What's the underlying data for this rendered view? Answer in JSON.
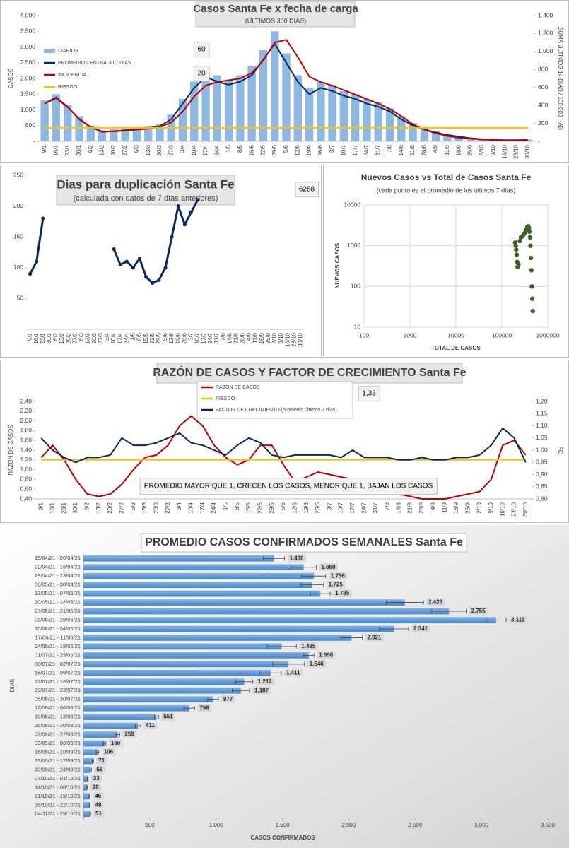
{
  "chart_data": [
    {
      "type": "combo",
      "title": "Casos Santa Fe x fecha de carga",
      "subtitle": "(ÚLTIMOS 300 DÍAS)",
      "ylabel": "CASOS",
      "y2label": "SUMA ÚLTIMOS 14 DÍAS / 100.000 HAB",
      "annotations": [
        "60",
        "20"
      ],
      "legend": "upper left",
      "grid": false,
      "categories": [
        "9/1",
        "16/1",
        "23/1",
        "30/1",
        "6/2",
        "13/2",
        "20/2",
        "27/2",
        "6/3",
        "13/3",
        "20/3",
        "27/3",
        "3/4",
        "10/4",
        "17/4",
        "24/4",
        "1/5",
        "8/5",
        "15/5",
        "22/5",
        "29/5",
        "5/6",
        "12/6",
        "19/6",
        "26/6",
        "3/7",
        "10/7",
        "17/7",
        "24/7",
        "31/7",
        "7/8",
        "14/8",
        "21/8",
        "28/8",
        "4/9",
        "11/9",
        "18/9",
        "25/9",
        "2/10",
        "9/10",
        "16/10",
        "23/10",
        "30/10"
      ],
      "series": [
        {
          "name": "DIARIOS",
          "type": "bar",
          "color": "#8db8e2",
          "values": [
            1300,
            1500,
            1150,
            800,
            500,
            350,
            380,
            400,
            420,
            470,
            550,
            850,
            1350,
            1900,
            2250,
            2100,
            1950,
            2100,
            2400,
            2900,
            3500,
            2800,
            2100,
            1700,
            1900,
            1800,
            1600,
            1500,
            1350,
            1250,
            1050,
            800,
            580,
            430,
            320,
            240,
            170,
            120,
            80,
            60,
            45,
            45,
            55
          ]
        },
        {
          "name": "PROMEDIO CENTRADO 7 DÍAS",
          "type": "line",
          "color": "#0d2a5c",
          "values": [
            1200,
            1400,
            1100,
            700,
            450,
            300,
            320,
            350,
            380,
            420,
            480,
            700,
            1200,
            1700,
            2050,
            1900,
            1800,
            1900,
            2100,
            2600,
            3100,
            2500,
            1900,
            1500,
            1700,
            1600,
            1450,
            1350,
            1200,
            1100,
            950,
            700,
            500,
            380,
            280,
            200,
            150,
            100,
            70,
            50,
            40,
            40,
            50
          ]
        },
        {
          "name": "INCIDENCIA",
          "type": "line",
          "color": "#c00000",
          "axis": "y2",
          "values": [
            420,
            480,
            380,
            250,
            160,
            110,
            110,
            120,
            130,
            140,
            160,
            210,
            330,
            500,
            620,
            660,
            680,
            700,
            760,
            900,
            1100,
            1130,
            940,
            720,
            660,
            620,
            570,
            520,
            470,
            420,
            360,
            280,
            190,
            130,
            90,
            60,
            40,
            30,
            20,
            15,
            12,
            12,
            12
          ]
        },
        {
          "name": "RIESGO",
          "type": "line",
          "color": "#ffc000",
          "axis": "y2",
          "values": [
            150,
            150,
            150,
            150,
            150,
            150,
            150,
            150,
            150,
            150,
            150,
            150,
            150,
            150,
            150,
            150,
            150,
            150,
            150,
            150,
            150,
            150,
            150,
            150,
            150,
            150,
            150,
            150,
            150,
            150,
            150,
            150,
            150,
            150,
            150,
            150,
            150,
            150,
            150,
            150,
            150,
            150,
            150
          ]
        }
      ],
      "ylim": [
        0,
        4000
      ],
      "yticks": [
        {
          "value": 0,
          "label": "-"
        },
        500,
        {
          "value": 1000,
          "label": "1.000"
        },
        {
          "value": 1500,
          "label": "1.500"
        },
        {
          "value": 2000,
          "label": "2.000"
        },
        {
          "value": 2500,
          "label": "2.500"
        },
        {
          "value": 3000,
          "label": "3.000"
        },
        {
          "value": 3500,
          "label": "3.500"
        },
        {
          "value": 4000,
          "label": "4.000"
        }
      ],
      "y2lim": [
        0,
        1400
      ],
      "y2ticks": [
        {
          "value": 0,
          "label": "-"
        },
        200,
        400,
        600,
        800,
        {
          "value": 1000,
          "label": "1.000"
        },
        {
          "value": 1200,
          "label": "1.200"
        },
        {
          "value": 1400,
          "label": "1.400"
        }
      ]
    },
    {
      "type": "line",
      "title": "Dias para duplicación Santa Fe",
      "subtitle": "(calculada con datos de 7 días anteriores)",
      "annotations": [
        "6288"
      ],
      "grid": false,
      "color": "#0d2a5c",
      "categories": [
        "9/1",
        "16/1",
        "23/1",
        "30/1",
        "6/2",
        "13/2",
        "20/2",
        "27/2",
        "6/3",
        "13/3",
        "20/3",
        "27/3",
        "3/4",
        "10/4",
        "17/4",
        "24/4",
        "1/5",
        "8/5",
        "15/5",
        "22/5",
        "29/5",
        "5/6",
        "12/6",
        "19/6",
        "26/6",
        "3/7",
        "10/7",
        "17/7",
        "24/7",
        "31/7",
        "7/8",
        "14/8",
        "21/8",
        "28/8",
        "4/9",
        "11/9",
        "18/9",
        "25/9",
        "2/10",
        "9/10",
        "16/10",
        "23/10",
        "30/10"
      ],
      "values": [
        90,
        110,
        180,
        null,
        null,
        null,
        null,
        null,
        null,
        null,
        null,
        null,
        null,
        130,
        105,
        110,
        100,
        115,
        85,
        75,
        80,
        100,
        150,
        200,
        170,
        190,
        210,
        null,
        null,
        null,
        null,
        null,
        null,
        null,
        null,
        null,
        null,
        null,
        null,
        null,
        null,
        null,
        null
      ],
      "ylim": [
        0,
        250
      ],
      "yticks": [
        50,
        100,
        150,
        200,
        250
      ]
    },
    {
      "type": "scatter",
      "title": "Nuevos Casos vs Total de Casos Santa Fe",
      "subtitle": "(cada punto es el promedio de los últimos 7 días)",
      "ylabel": "NUEVOS CASOS",
      "xlabel": "TOTAL DE CASOS",
      "color": "#3b6325",
      "grid": true,
      "xlog": true,
      "ylog": true,
      "x": [
        195000,
        200000,
        205000,
        210000,
        215000,
        220000,
        230000,
        245000,
        260000,
        280000,
        300000,
        320000,
        340000,
        360000,
        375000,
        390000,
        400000,
        410000,
        420000,
        430000,
        440000,
        450000,
        460000,
        470000
      ],
      "values": [
        1200,
        1000,
        800,
        600,
        400,
        300,
        350,
        1300,
        1600,
        1700,
        1900,
        2100,
        2500,
        2900,
        3000,
        2700,
        2200,
        1600,
        1000,
        500,
        250,
        100,
        50,
        25
      ],
      "xlim": [
        100,
        1000000
      ],
      "xticks": [
        100,
        1000,
        10000,
        100000,
        1000000
      ],
      "ylim": [
        10,
        10000
      ],
      "yticks": [
        10,
        100,
        1000,
        10000
      ]
    },
    {
      "type": "line",
      "title": "RAZÓN DE CASOS Y FACTOR DE CRECIMIENTO Santa Fe",
      "ylabel": "RAZÓN DE CASOS",
      "y2label": "FC",
      "annotations": [
        "1,33",
        "PROMEDIO MAYOR QUE 1, CRECEN LOS CASOS, MENOR QUE 1, BAJAN LOS CASOS"
      ],
      "legend": "upper center",
      "grid": false,
      "categories": [
        "9/1",
        "16/1",
        "23/1",
        "30/1",
        "6/2",
        "13/2",
        "20/2",
        "27/2",
        "6/3",
        "13/3",
        "20/3",
        "27/3",
        "3/4",
        "10/4",
        "17/4",
        "24/4",
        "1/5",
        "8/5",
        "15/5",
        "22/5",
        "29/5",
        "5/6",
        "12/6",
        "19/6",
        "26/6",
        "3/7",
        "10/7",
        "17/7",
        "24/7",
        "31/7",
        "7/8",
        "14/8",
        "21/8",
        "28/8",
        "4/9",
        "11/9",
        "18/9",
        "25/9",
        "2/10",
        "9/10",
        "16/10",
        "23/10",
        "30/10"
      ],
      "series": [
        {
          "name": "RAZÓN DE CASOS",
          "color": "#c00000",
          "values": [
            1.25,
            1.5,
            1.2,
            0.8,
            0.5,
            0.45,
            0.5,
            0.7,
            1.0,
            1.25,
            1.3,
            1.5,
            1.9,
            2.1,
            1.9,
            1.5,
            1.25,
            1.1,
            1.2,
            1.5,
            1.5,
            1.1,
            0.75,
            0.85,
            0.95,
            0.9,
            0.85,
            0.8,
            0.8,
            0.75,
            0.6,
            0.5,
            0.45,
            0.4,
            0.4,
            0.4,
            0.45,
            0.5,
            0.55,
            0.8,
            1.5,
            1.6,
            1.3
          ]
        },
        {
          "name": "RIESGO",
          "color": "#ffc000",
          "values": [
            1.2,
            1.2,
            1.2,
            1.2,
            1.2,
            1.2,
            1.2,
            1.2,
            1.2,
            1.2,
            1.2,
            1.2,
            1.2,
            1.2,
            1.2,
            1.2,
            1.2,
            1.2,
            1.2,
            1.2,
            1.2,
            1.2,
            1.2,
            1.2,
            1.2,
            1.2,
            1.2,
            1.2,
            1.2,
            1.2,
            1.2,
            1.2,
            1.2,
            1.2,
            1.2,
            1.2,
            1.2,
            1.2,
            1.2,
            1.2,
            1.2,
            1.2,
            1.2
          ]
        },
        {
          "name": "FACTOR DE CRECIMIENTO (promedio últimos 7 días)",
          "color": "#0d2a5c",
          "axis": "y2",
          "values": [
            1.05,
            1.0,
            0.97,
            0.95,
            0.97,
            0.97,
            0.98,
            1.05,
            1.02,
            1.02,
            1.03,
            1.05,
            1.07,
            1.03,
            1.02,
            1.0,
            0.98,
            1.02,
            1.05,
            1.03,
            0.98,
            0.97,
            0.98,
            0.98,
            0.98,
            0.98,
            0.97,
            1.0,
            0.97,
            0.97,
            0.97,
            0.96,
            0.96,
            0.97,
            0.96,
            0.96,
            0.97,
            0.97,
            0.98,
            1.02,
            1.09,
            1.05,
            0.95
          ]
        }
      ],
      "ylim": [
        0.4,
        2.4
      ],
      "yticks": [
        {
          "value": 0.4,
          "label": "0,40"
        },
        {
          "value": 0.6,
          "label": "0,60"
        },
        {
          "value": 0.8,
          "label": "0,80"
        },
        {
          "value": 1.0,
          "label": "1,00"
        },
        {
          "value": 1.2,
          "label": "1,20"
        },
        {
          "value": 1.4,
          "label": "1,40"
        },
        {
          "value": 1.6,
          "label": "1,60"
        },
        {
          "value": 1.8,
          "label": "1,80"
        },
        {
          "value": 2.0,
          "label": "2,00"
        },
        {
          "value": 2.2,
          "label": "2,20"
        },
        {
          "value": 2.4,
          "label": "2,40"
        }
      ],
      "y2lim": [
        0.8,
        1.2
      ],
      "y2ticks": [
        {
          "value": 0.8,
          "label": "0,80"
        },
        {
          "value": 0.85,
          "label": "0,85"
        },
        {
          "value": 0.9,
          "label": "0,90"
        },
        {
          "value": 0.95,
          "label": "0,95"
        },
        {
          "value": 1.0,
          "label": "1,00"
        },
        {
          "value": 1.05,
          "label": "1,05"
        },
        {
          "value": 1.1,
          "label": "1,10"
        },
        {
          "value": 1.15,
          "label": "1,15"
        },
        {
          "value": 1.2,
          "label": "1,20"
        }
      ]
    },
    {
      "type": "hbar",
      "title": "PROMEDIO CASOS CONFIRMADOS SEMANALES Santa Fe",
      "ylabel": "DIAS",
      "xlabel": "CASOS CONFIRMADOS",
      "color": "#5b9bd5",
      "grid": false,
      "categories": [
        "15/04/21 - 09/04/21",
        "22/04/21 - 16/04/21",
        "29/04/21 - 23/04/21",
        "06/05/21 - 30/04/21",
        "13/05/21 - 07/05/21",
        "20/05/21 - 14/05/21",
        "27/05/21 - 21/05/21",
        "03/06/21 - 28/05/21",
        "10/06/21 - 04/06/21",
        "17/06/21 - 11/06/21",
        "24/06/21 - 18/06/21",
        "01/07/21 - 25/06/21",
        "08/07/21 - 02/07/21",
        "15/07/21 - 09/07/21",
        "22/07/21 - 16/07/21",
        "29/07/21 - 23/07/21",
        "05/08/21 - 30/07/21",
        "12/08/21 - 06/08/21",
        "19/08/21 - 13/08/21",
        "26/08/21 - 20/08/21",
        "02/09/21 - 27/08/21",
        "09/09/21 - 03/09/21",
        "16/09/21 - 10/09/21",
        "23/09/21 - 17/09/21",
        "30/09/21 - 24/09/21",
        "07/10/21 - 01/10/21",
        "14/10/21 - 08/10/21",
        "21/10/21 - 15/10/21",
        "28/10/21 - 22/10/21",
        "04/11/21 - 29/10/21"
      ],
      "values": [
        1436,
        1660,
        1736,
        1725,
        1785,
        2423,
        2755,
        3111,
        2341,
        2021,
        1495,
        1698,
        1546,
        1411,
        1212,
        1187,
        977,
        798,
        551,
        411,
        259,
        160,
        106,
        71,
        56,
        33,
        28,
        46,
        48,
        51
      ],
      "value_labels": [
        "1.436",
        "1.660",
        "1.736",
        "1.725",
        "1.785",
        "2.423",
        "2.755",
        "3.111",
        "2.341",
        "2.021",
        "1.495",
        "1.698",
        "1.546",
        "1.411",
        "1.212",
        "1.187",
        "977",
        "798",
        "551",
        "411",
        "259",
        "160",
        "106",
        "71",
        "56",
        "33",
        "28",
        "46",
        "48",
        "51"
      ],
      "errors": [
        80,
        95,
        90,
        85,
        75,
        140,
        130,
        75,
        110,
        80,
        110,
        40,
        120,
        80,
        65,
        65,
        40,
        40,
        15,
        20,
        15,
        10,
        10,
        5,
        5,
        3,
        3,
        3,
        3,
        3
      ],
      "xlim": [
        0,
        3500
      ],
      "xticks": [
        {
          "value": 0,
          "label": "-"
        },
        500,
        {
          "value": 1000,
          "label": "1.000"
        },
        {
          "value": 1500,
          "label": "1.500"
        },
        {
          "value": 2000,
          "label": "2.000"
        },
        {
          "value": 2500,
          "label": "2.500"
        },
        {
          "value": 3000,
          "label": "3.000"
        },
        {
          "value": 3500,
          "label": "3.500"
        }
      ]
    }
  ]
}
